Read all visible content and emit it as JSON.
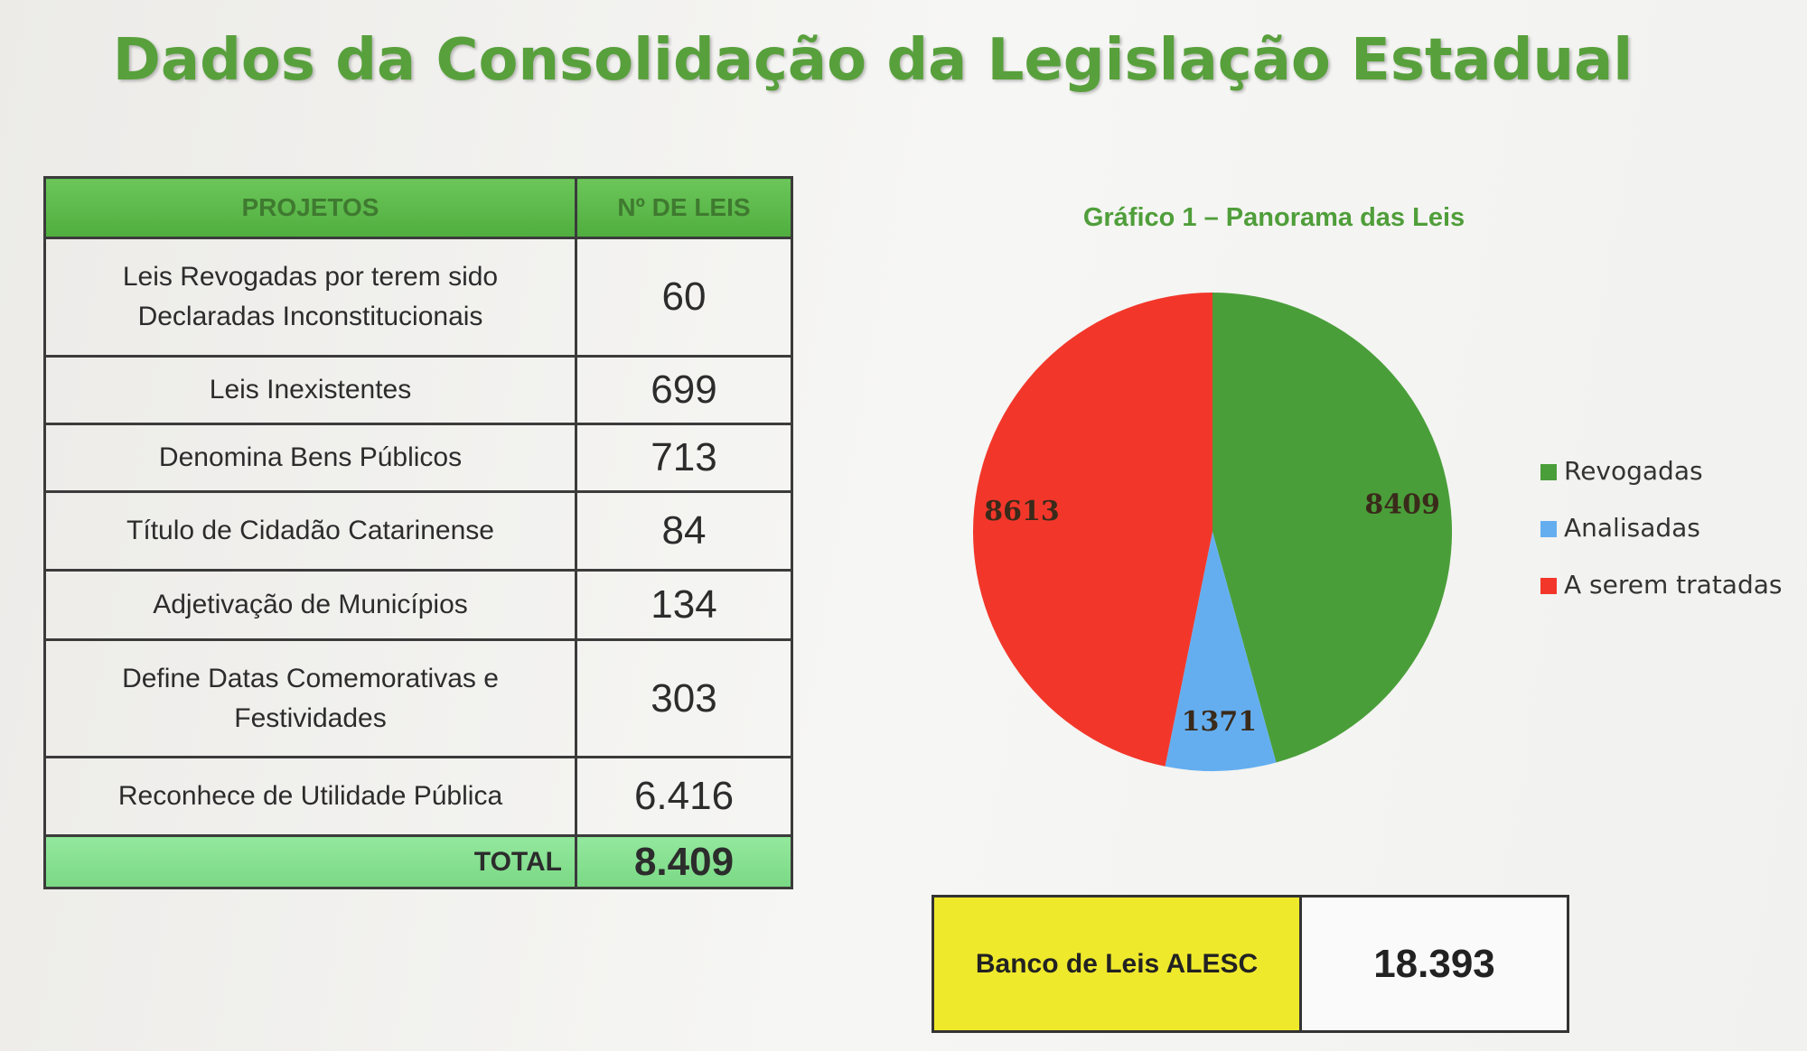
{
  "header": {
    "title": "Dados da Consolidação da Legislação Estadual"
  },
  "table": {
    "columns": [
      "PROJETOS",
      "Nº DE LEIS"
    ],
    "rows": [
      [
        "Leis Revogadas por terem sido Declaradas Inconstitucionais",
        "60"
      ],
      [
        "Leis Inexistentes",
        "699"
      ],
      [
        "Denomina Bens Públicos",
        "713"
      ],
      [
        "Título de Cidadão Catarinense",
        "84"
      ],
      [
        "Adjetivação de Municípios",
        "134"
      ],
      [
        "Define Datas Comemorativas e Festividades",
        "303"
      ],
      [
        "Reconhece de Utilidade Pública",
        "6.416"
      ]
    ],
    "total": [
      "TOTAL",
      "8.409"
    ]
  },
  "chart_data": {
    "type": "pie",
    "title": "Gráfico 1 – Panorama das Leis",
    "categories": [
      "Revogadas",
      "Analisadas",
      "A serem tratadas"
    ],
    "values": [
      8409,
      1371,
      8613
    ],
    "colors": [
      "#4a9e3a",
      "#64aef0",
      "#f2372a"
    ],
    "legend": "right"
  },
  "summary": {
    "label": "Banco de Leis ALESC",
    "value": "18.393"
  }
}
